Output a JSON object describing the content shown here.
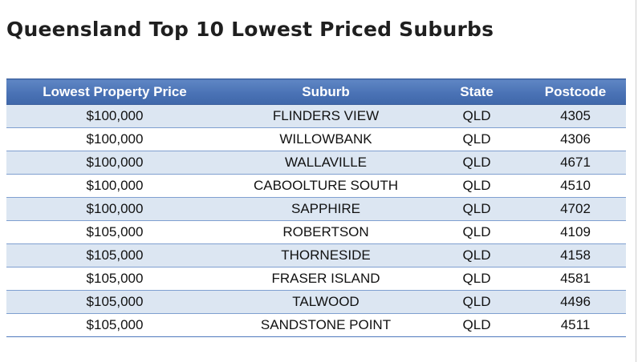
{
  "title": "Queensland Top 10 Lowest Priced Suburbs",
  "table": {
    "headers": [
      "Lowest Property Price",
      "Suburb",
      "State",
      "Postcode"
    ],
    "rows": [
      [
        "$100,000",
        "FLINDERS VIEW",
        "QLD",
        "4305"
      ],
      [
        "$100,000",
        "WILLOWBANK",
        "QLD",
        "4306"
      ],
      [
        "$100,000",
        "WALLAVILLE",
        "QLD",
        "4671"
      ],
      [
        "$100,000",
        "CABOOLTURE SOUTH",
        "QLD",
        "4510"
      ],
      [
        "$100,000",
        "SAPPHIRE",
        "QLD",
        "4702"
      ],
      [
        "$105,000",
        "ROBERTSON",
        "QLD",
        "4109"
      ],
      [
        "$105,000",
        "THORNESIDE",
        "QLD",
        "4158"
      ],
      [
        "$105,000",
        "FRASER ISLAND",
        "QLD",
        "4581"
      ],
      [
        "$105,000",
        "TALWOOD",
        "QLD",
        "4496"
      ],
      [
        "$105,000",
        "SANDSTONE POINT",
        "QLD",
        "4511"
      ]
    ]
  },
  "colors": {
    "header_bg": "#4a72b5",
    "row_band": "#dce6f2",
    "row_divider": "#7f9fd0"
  }
}
